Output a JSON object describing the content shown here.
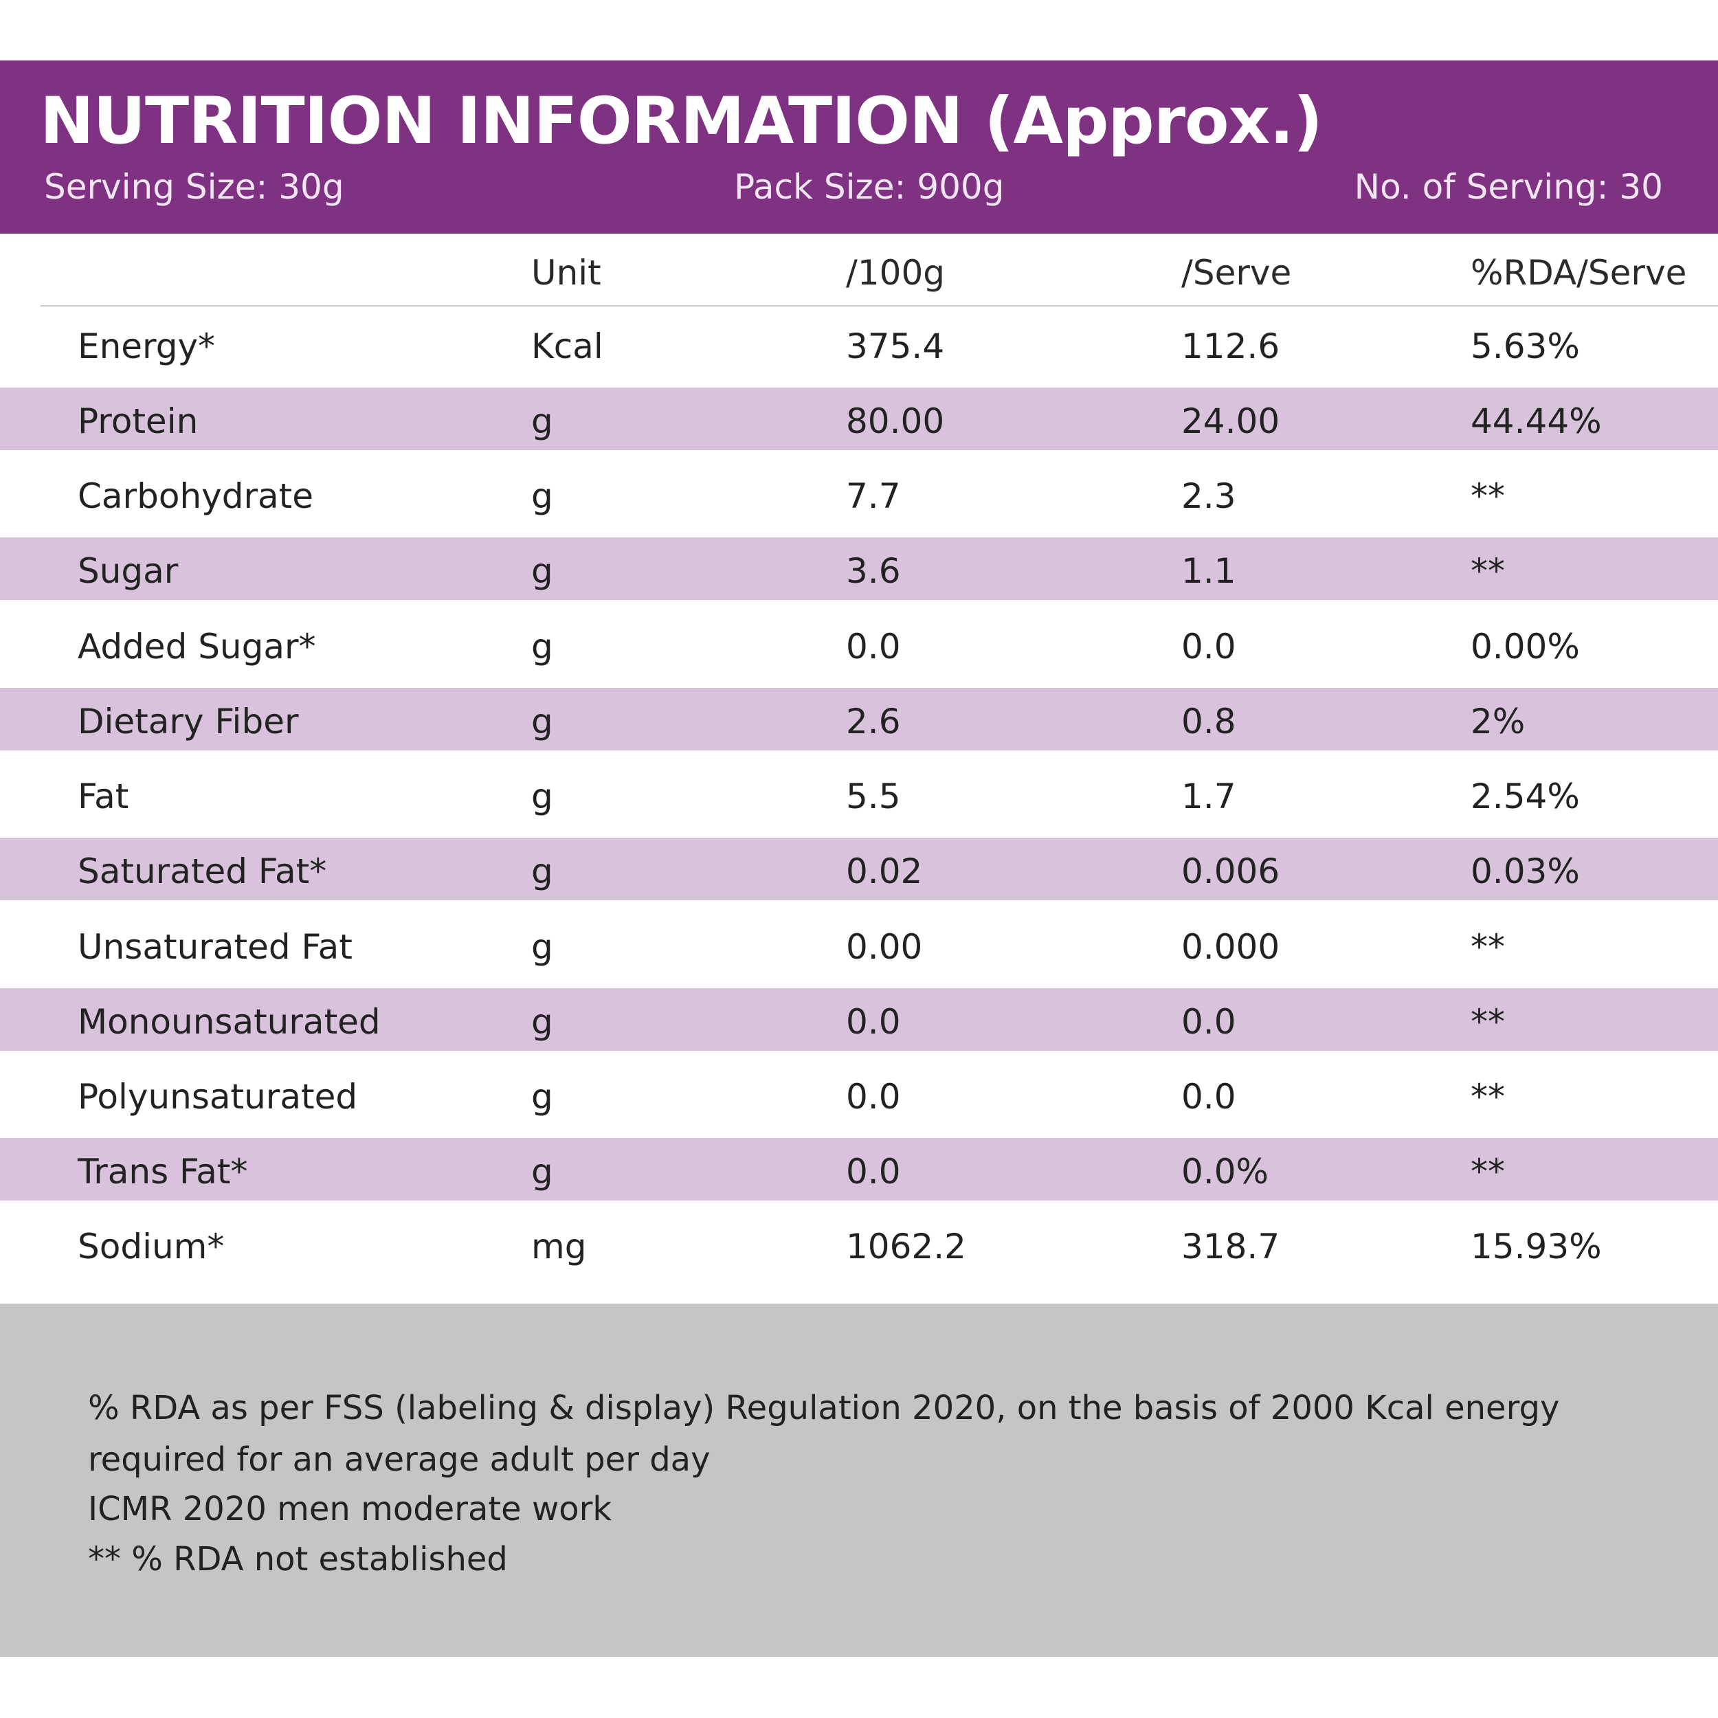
{
  "header": {
    "title": "NUTRITION INFORMATION (Approx.)",
    "serving_size": "Serving Size: 30g",
    "pack_size": "Pack Size: 900g",
    "servings": "No. of Serving: 30"
  },
  "table": {
    "columns": [
      "",
      "Unit",
      "/100g",
      "/Serve",
      "%RDA/Serve"
    ],
    "rows": [
      [
        "Energy*",
        "Kcal",
        "375.4",
        "112.6",
        "5.63%"
      ],
      [
        "Protein",
        "g",
        "80.00",
        "24.00",
        "44.44%"
      ],
      [
        "Carbohydrate",
        "g",
        "7.7",
        "2.3",
        "**"
      ],
      [
        "Sugar",
        "g",
        "3.6",
        "1.1",
        "**"
      ],
      [
        "Added Sugar*",
        "g",
        "0.0",
        "0.0",
        "0.00%"
      ],
      [
        "Dietary Fiber",
        "g",
        "2.6",
        "0.8",
        "2%"
      ],
      [
        "Fat",
        "g",
        "5.5",
        "1.7",
        "2.54%"
      ],
      [
        "Saturated Fat*",
        "g",
        "0.02",
        "0.006",
        "0.03%"
      ],
      [
        "Unsaturated Fat",
        "g",
        "0.00",
        "0.000",
        "**"
      ],
      [
        "Monounsaturated",
        "g",
        "0.0",
        "0.0",
        "**"
      ],
      [
        "Polyunsaturated",
        "g",
        "0.0",
        "0.0",
        "**"
      ],
      [
        "Trans Fat*",
        "g",
        "0.0",
        "0.0%",
        "**"
      ],
      [
        "Sodium*",
        "mg",
        "1062.2",
        "318.7",
        "15.93%"
      ]
    ]
  },
  "footnotes": [
    "% RDA as per FSS (labeling & display) Regulation 2020, on the basis of 2000 Kcal energy",
    "required for an average adult per day",
    "ICMR 2020 men moderate work",
    "** % RDA not established"
  ]
}
